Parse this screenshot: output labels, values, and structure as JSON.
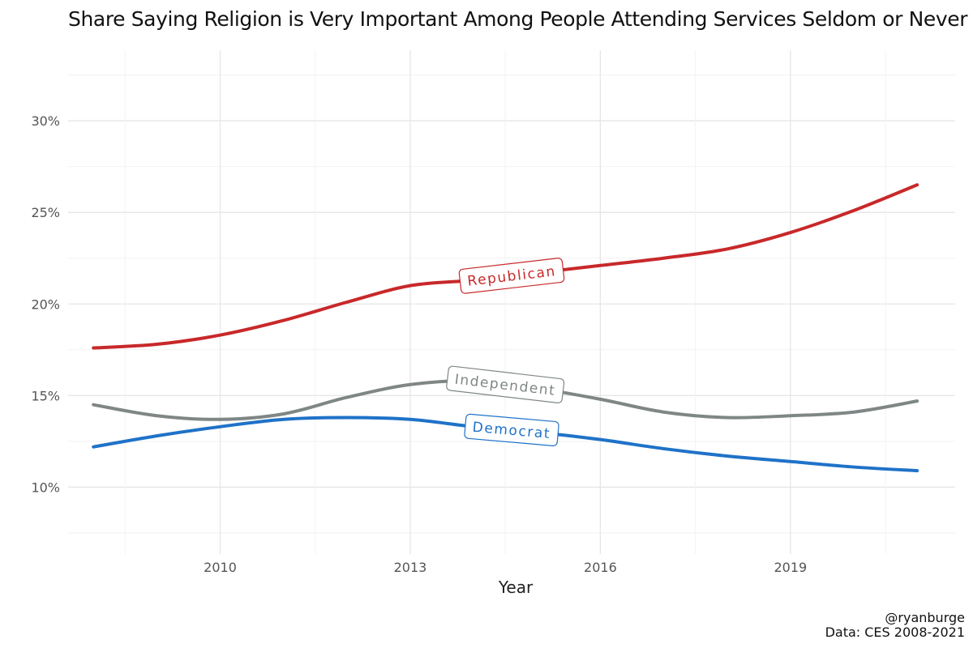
{
  "chart_data": {
    "type": "line",
    "title": "Share Saying Religion is Very Important Among People Attending Services Seldom or Never",
    "xlabel": "Year",
    "ylabel": "",
    "x_ticks": [
      2010,
      2013,
      2016,
      2019
    ],
    "y_ticks": [
      0.1,
      0.15,
      0.2,
      0.25,
      0.3
    ],
    "y_tick_labels": [
      "10%",
      "15%",
      "20%",
      "25%",
      "30%"
    ],
    "xlim": [
      2007.6,
      2021.6
    ],
    "ylim": [
      0.0635,
      0.3385
    ],
    "grid": true,
    "legend": "none",
    "series": [
      {
        "name": "Republican",
        "color": "#c8282a",
        "x": [
          2008,
          2009,
          2010,
          2011,
          2012,
          2013,
          2014,
          2015,
          2016,
          2017,
          2018,
          2019,
          2020,
          2021
        ],
        "values": [
          0.176,
          0.178,
          0.183,
          0.191,
          0.201,
          0.21,
          0.213,
          0.217,
          0.221,
          0.225,
          0.23,
          0.239,
          0.251,
          0.265
        ],
        "label_x": 2014.6
      },
      {
        "name": "Independent",
        "color": "#7f8786",
        "x": [
          2008,
          2009,
          2010,
          2011,
          2012,
          2013,
          2014,
          2015,
          2016,
          2017,
          2018,
          2019,
          2020,
          2021
        ],
        "values": [
          0.145,
          0.139,
          0.137,
          0.14,
          0.149,
          0.156,
          0.158,
          0.154,
          0.148,
          0.141,
          0.138,
          0.139,
          0.141,
          0.147
        ],
        "label_x": 2014.5
      },
      {
        "name": "Democrat",
        "color": "#1f72c8",
        "x": [
          2008,
          2009,
          2010,
          2011,
          2012,
          2013,
          2014,
          2015,
          2016,
          2017,
          2018,
          2019,
          2020,
          2021
        ],
        "values": [
          0.122,
          0.128,
          0.133,
          0.137,
          0.138,
          0.137,
          0.133,
          0.13,
          0.126,
          0.121,
          0.117,
          0.114,
          0.111,
          0.109
        ],
        "label_x": 2014.6
      }
    ],
    "caption": [
      "@ryanburge",
      "Data: CES 2008-2021"
    ]
  }
}
